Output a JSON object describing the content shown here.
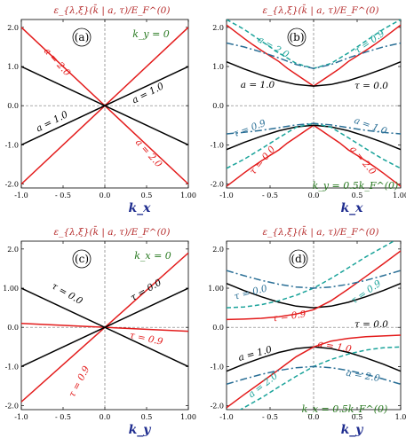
{
  "colors": {
    "red": "#e31b1b",
    "black": "#000000",
    "teal": "#1aa39a",
    "blue_dashdot": "#2a6f96",
    "ylabel": "#b52a2a",
    "xlabel": "#1f2d8f",
    "condition": "#2a7a22"
  },
  "chart_data": [
    {
      "type": "line",
      "panel": "(a)",
      "condition": "k_y = 0",
      "ylabel": "ε_{λ,ξ}(k̄ | a, τ)/E_F^(0)",
      "xlabel": "k_x",
      "xlim": [
        -1.0,
        1.0
      ],
      "ylim": [
        -2.1,
        2.2
      ],
      "x_ticks": [
        "-1.0",
        "- 0.5",
        "0.0",
        "0.5",
        "1.00"
      ],
      "y_ticks": [
        "2.0",
        "1.0",
        "0.0",
        "-1.0",
        "-2.0"
      ],
      "series": [
        {
          "color": "red",
          "style": "solid",
          "x": [
            -1,
            1
          ],
          "y": [
            2.0,
            -2.0
          ]
        },
        {
          "color": "red",
          "style": "solid",
          "x": [
            -1,
            1
          ],
          "y": [
            -2.0,
            2.0
          ]
        },
        {
          "color": "black",
          "style": "solid",
          "x": [
            -1,
            1
          ],
          "y": [
            1.0,
            -1.0
          ]
        },
        {
          "color": "black",
          "style": "solid",
          "x": [
            -1,
            1
          ],
          "y": [
            -1.0,
            1.0
          ]
        }
      ],
      "annotations": [
        "a = 2.0",
        "a = 1.0",
        "a = 1.0",
        "a = 2.0"
      ]
    },
    {
      "type": "line",
      "panel": "(b)",
      "condition": "k_y = 0.5k_F^(0)",
      "ylabel": "ε_{λ,ξ}(k̄ | a, τ)/E_F^(0)",
      "xlabel": "k_x",
      "xlim": [
        -1.0,
        1.0
      ],
      "ylim": [
        -2.1,
        2.2
      ],
      "x_ticks": [
        "-1.0",
        "- 0.5",
        "0.0",
        "0.5",
        "1.00"
      ],
      "y_ticks": [
        "2.0",
        "1.0",
        "0.0",
        "-1.0",
        "-2.0"
      ],
      "series": [
        {
          "color": "red",
          "style": "solid",
          "x": [
            -1,
            -0.9,
            -0.8,
            -0.7,
            -0.6,
            -0.5,
            -0.4,
            -0.3,
            -0.2,
            -0.1,
            0,
            0.1,
            0.2,
            0.3,
            0.4,
            0.5,
            0.6,
            0.7,
            0.8,
            0.9,
            1
          ],
          "y": [
            2.06,
            1.89,
            1.72,
            1.56,
            1.41,
            1.27,
            1.13,
            0.95,
            0.8,
            0.65,
            0.5,
            0.65,
            0.8,
            0.95,
            1.13,
            1.27,
            1.41,
            1.56,
            1.72,
            1.89,
            2.06
          ]
        },
        {
          "color": "red",
          "style": "solid",
          "x": [
            -1,
            -0.9,
            -0.8,
            -0.7,
            -0.6,
            -0.5,
            -0.4,
            -0.3,
            -0.2,
            -0.1,
            0,
            0.1,
            0.2,
            0.3,
            0.4,
            0.5,
            0.6,
            0.7,
            0.8,
            0.9,
            1
          ],
          "y": [
            -2.06,
            -1.89,
            -1.72,
            -1.56,
            -1.41,
            -1.27,
            -1.13,
            -0.95,
            -0.8,
            -0.65,
            -0.5,
            -0.65,
            -0.8,
            -0.95,
            -1.13,
            -1.27,
            -1.41,
            -1.56,
            -1.72,
            -1.89,
            -2.06
          ]
        },
        {
          "color": "black",
          "style": "solid",
          "x": [
            -1,
            -0.8,
            -0.6,
            -0.4,
            -0.2,
            0,
            0.2,
            0.4,
            0.6,
            0.8,
            1
          ],
          "y": [
            1.12,
            0.94,
            0.78,
            0.64,
            0.54,
            0.5,
            0.54,
            0.64,
            0.78,
            0.94,
            1.12
          ]
        },
        {
          "color": "black",
          "style": "solid",
          "x": [
            -1,
            -0.8,
            -0.6,
            -0.4,
            -0.2,
            0,
            0.2,
            0.4,
            0.6,
            0.8,
            1
          ],
          "y": [
            -1.12,
            -0.94,
            -0.78,
            -0.64,
            -0.54,
            -0.5,
            -0.54,
            -0.64,
            -0.78,
            -0.94,
            -1.12
          ]
        },
        {
          "color": "teal",
          "style": "dashed",
          "x": [
            -1,
            -0.8,
            -0.6,
            -0.4,
            -0.2,
            0,
            0.2,
            0.4,
            0.6,
            0.8,
            1
          ],
          "y": [
            2.2,
            1.95,
            1.65,
            1.35,
            1.08,
            0.95,
            1.08,
            1.35,
            1.65,
            1.95,
            2.2
          ]
        },
        {
          "color": "teal",
          "style": "dashed",
          "x": [
            -1,
            -0.8,
            -0.6,
            -0.4,
            -0.2,
            0,
            0.2,
            0.4,
            0.6,
            0.8,
            1
          ],
          "y": [
            -1.6,
            -1.37,
            -1.1,
            -0.82,
            -0.55,
            -0.45,
            -0.55,
            -0.82,
            -1.1,
            -1.37,
            -1.6
          ]
        },
        {
          "color": "blue_dashdot",
          "style": "dashdot",
          "x": [
            -1,
            -0.8,
            -0.6,
            -0.4,
            -0.2,
            0,
            0.2,
            0.4,
            0.6,
            0.8,
            1
          ],
          "y": [
            1.6,
            1.5,
            1.37,
            1.22,
            1.05,
            0.95,
            1.05,
            1.22,
            1.37,
            1.5,
            1.6
          ]
        },
        {
          "color": "blue_dashdot",
          "style": "dashdot",
          "x": [
            -1,
            -0.8,
            -0.6,
            -0.4,
            -0.2,
            0,
            0.2,
            0.4,
            0.6,
            0.8,
            1
          ],
          "y": [
            -0.72,
            -0.68,
            -0.63,
            -0.56,
            -0.49,
            -0.45,
            -0.49,
            -0.56,
            -0.63,
            -0.68,
            -0.72
          ]
        }
      ],
      "annotations": [
        "a = 2.0",
        "τ = 0.9",
        "a = 1.0",
        "τ = 0.0",
        "τ = 0.9",
        "a = 1.0",
        "τ = 0.0",
        "a = 2.0"
      ]
    },
    {
      "type": "line",
      "panel": "(c)",
      "condition": "k_x = 0",
      "ylabel": "ε_{λ,ξ}(k̄ | a, τ)/E_F^(0)",
      "xlabel": "k_y",
      "xlim": [
        -1.0,
        1.0
      ],
      "ylim": [
        -2.1,
        2.2
      ],
      "x_ticks": [
        "-1.0",
        "- 0.5",
        "0.0",
        "0.5",
        "1.00"
      ],
      "y_ticks": [
        "2.0",
        "1.00",
        "0.0",
        "-1.0",
        "-2.0"
      ],
      "series": [
        {
          "color": "red",
          "style": "solid",
          "x": [
            -1,
            1
          ],
          "y": [
            -1.9,
            1.9
          ]
        },
        {
          "color": "red",
          "style": "solid",
          "x": [
            -1,
            1
          ],
          "y": [
            0.1,
            -0.1
          ]
        },
        {
          "color": "black",
          "style": "solid",
          "x": [
            -1,
            1
          ],
          "y": [
            1.0,
            -1.0
          ]
        },
        {
          "color": "black",
          "style": "solid",
          "x": [
            -1,
            1
          ],
          "y": [
            -1.0,
            1.0
          ]
        }
      ],
      "annotations": [
        "τ = 0.0",
        "τ = 0.0",
        "τ = 0.9",
        "τ = 0.9"
      ]
    },
    {
      "type": "line",
      "panel": "(d)",
      "condition": "k_x = 0.5k_F^(0)",
      "ylabel": "ε_{λ,ξ}(k̄ | a, τ)/E_F^(0)",
      "xlabel": "k_y",
      "xlim": [
        -1.0,
        1.0
      ],
      "ylim": [
        -2.1,
        2.2
      ],
      "x_ticks": [
        "-1.0",
        "- 0.5",
        "0.0",
        "0.5",
        "1.0"
      ],
      "y_ticks": [
        "2.0",
        "1.00",
        "0.0",
        "-1.0",
        "-2.0"
      ],
      "series": [
        {
          "color": "black",
          "style": "solid",
          "x": [
            -1,
            -0.8,
            -0.6,
            -0.4,
            -0.2,
            0,
            0.2,
            0.4,
            0.6,
            0.8,
            1
          ],
          "y": [
            1.12,
            0.94,
            0.78,
            0.64,
            0.54,
            0.5,
            0.54,
            0.64,
            0.78,
            0.94,
            1.12
          ]
        },
        {
          "color": "black",
          "style": "solid",
          "x": [
            -1,
            -0.8,
            -0.6,
            -0.4,
            -0.2,
            0,
            0.2,
            0.4,
            0.6,
            0.8,
            1
          ],
          "y": [
            -1.12,
            -0.94,
            -0.78,
            -0.64,
            -0.54,
            -0.5,
            -0.54,
            -0.64,
            -0.78,
            -0.94,
            -1.12
          ]
        },
        {
          "color": "red",
          "style": "solid",
          "x": [
            -1,
            -0.8,
            -0.6,
            -0.4,
            -0.2,
            0,
            0.2,
            0.4,
            0.6,
            0.8,
            1
          ],
          "y": [
            0.2,
            0.21,
            0.23,
            0.27,
            0.34,
            0.45,
            0.68,
            0.98,
            1.3,
            1.62,
            1.95
          ]
        },
        {
          "color": "red",
          "style": "solid",
          "x": [
            -1,
            -0.8,
            -0.6,
            -0.4,
            -0.2,
            0,
            0.2,
            0.4,
            0.6,
            0.8,
            1
          ],
          "y": [
            -2.05,
            -1.72,
            -1.4,
            -1.08,
            -0.75,
            -0.5,
            -0.35,
            -0.28,
            -0.24,
            -0.22,
            -0.2
          ]
        },
        {
          "color": "teal",
          "style": "dashed",
          "x": [
            -1,
            -0.8,
            -0.6,
            -0.4,
            -0.2,
            0,
            0.2,
            0.4,
            0.6,
            0.8,
            1
          ],
          "y": [
            0.5,
            0.52,
            0.58,
            0.68,
            0.82,
            1.0,
            1.25,
            1.52,
            1.8,
            2.05,
            2.3
          ]
        },
        {
          "color": "teal",
          "style": "dashed",
          "x": [
            -1,
            -0.8,
            -0.6,
            -0.4,
            -0.2,
            0,
            0.2,
            0.4,
            0.6,
            0.8,
            1
          ],
          "y": [
            -2.3,
            -2.05,
            -1.8,
            -1.52,
            -1.25,
            -1.0,
            -0.82,
            -0.68,
            -0.58,
            -0.52,
            -0.5
          ]
        },
        {
          "color": "blue_dashdot",
          "style": "dashdot",
          "x": [
            -1,
            -0.8,
            -0.6,
            -0.4,
            -0.2,
            0,
            0.2,
            0.4,
            0.6,
            0.8,
            1
          ],
          "y": [
            1.45,
            1.32,
            1.2,
            1.1,
            1.03,
            1.0,
            1.03,
            1.1,
            1.2,
            1.32,
            1.45
          ]
        },
        {
          "color": "blue_dashdot",
          "style": "dashdot",
          "x": [
            -1,
            -0.8,
            -0.6,
            -0.4,
            -0.2,
            0,
            0.2,
            0.4,
            0.6,
            0.8,
            1
          ],
          "y": [
            -1.45,
            -1.32,
            -1.2,
            -1.1,
            -1.03,
            -1.0,
            -1.03,
            -1.1,
            -1.2,
            -1.32,
            -1.45
          ]
        }
      ],
      "annotations": [
        "τ = 0.0",
        "τ = 0.9",
        "τ = 0.9",
        "τ = 0.0",
        "a = 1.0",
        "a = 1.0",
        "a = 2.0",
        "a = 2.0"
      ]
    }
  ]
}
